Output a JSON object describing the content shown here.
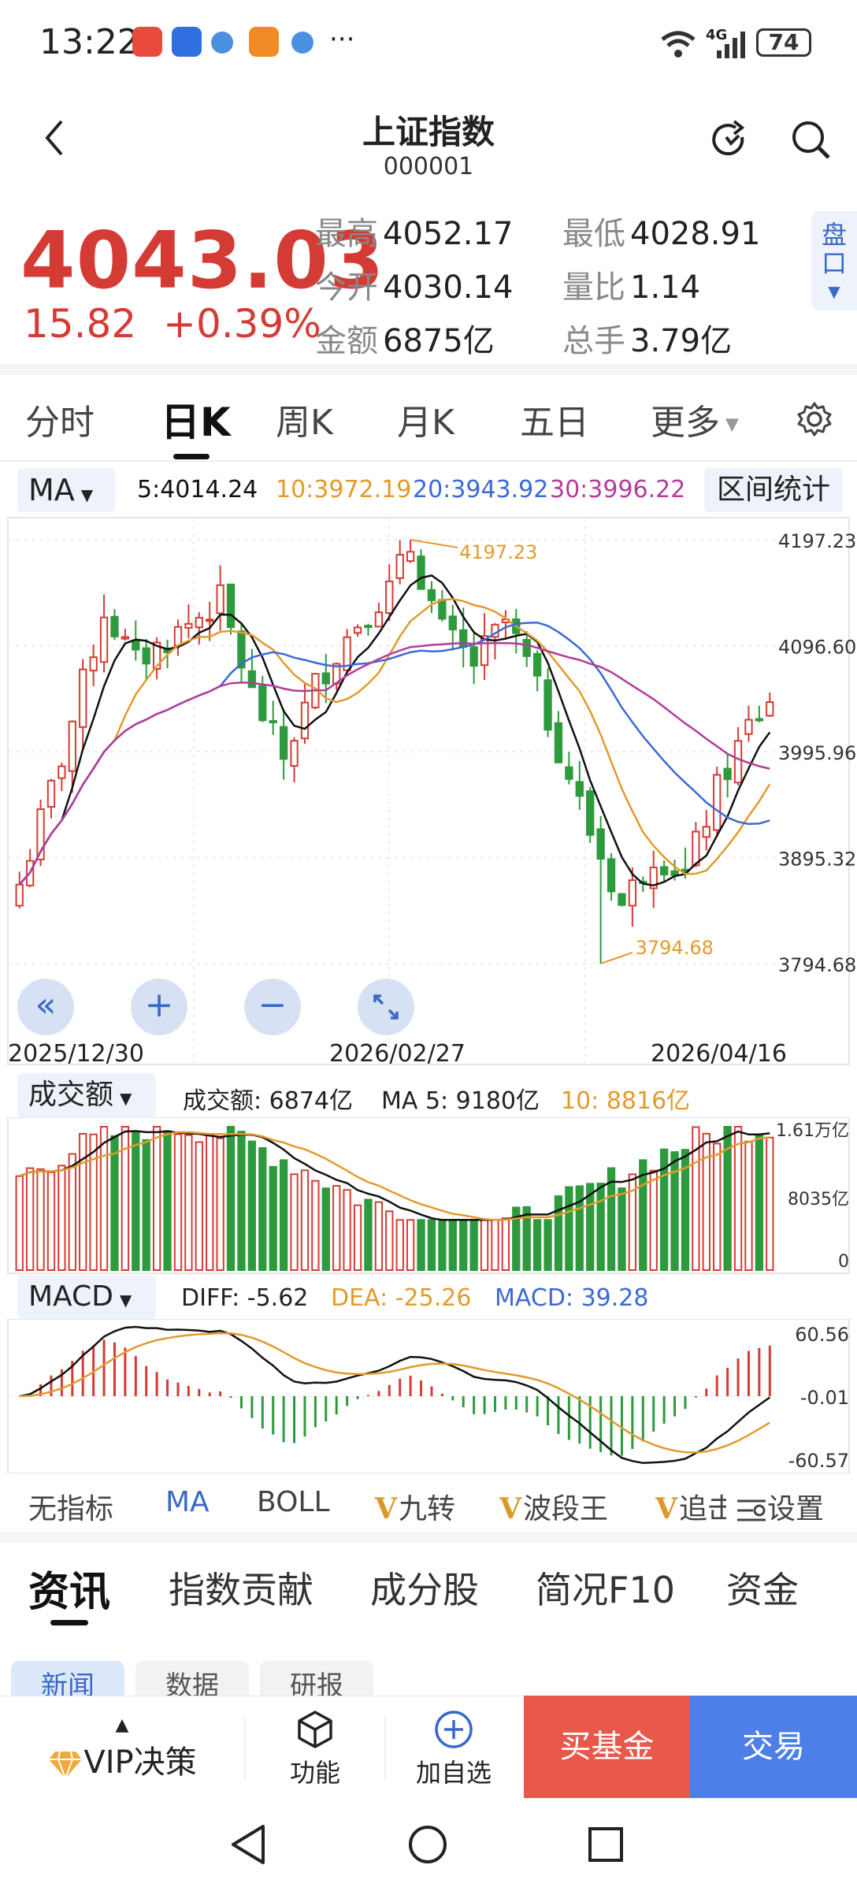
{
  "status_bar": {
    "time": "13:22",
    "network": "4G",
    "battery": "74"
  },
  "header": {
    "title": "上证指数",
    "code": "000001"
  },
  "quote": {
    "price": "4043.03",
    "change": "15.82",
    "change_pct": "+0.39%",
    "stats": [
      {
        "label": "最高",
        "value": "4052.17"
      },
      {
        "label": "最低",
        "value": "4028.91"
      },
      {
        "label": "今开",
        "value": "4030.14"
      },
      {
        "label": "量比",
        "value": "1.14"
      },
      {
        "label": "金额",
        "value": "6875亿"
      },
      {
        "label": "总手",
        "value": "3.79亿"
      }
    ],
    "pankou_label": "盘口",
    "up_color": "#d53b35",
    "down_color": "#2e9a3e"
  },
  "period_tabs": [
    "分时",
    "日K",
    "周K",
    "月K",
    "五日",
    "更多"
  ],
  "active_period": "日K",
  "ma_bar": {
    "selector": "MA",
    "ma5": "5:4014.24",
    "ma10": "10:3972.19",
    "ma20": "20:3943.92",
    "ma30": "30:3996.22",
    "interval_stats": "区间统计",
    "colors": {
      "ma5": "#111111",
      "ma10": "#e39a2c",
      "ma20": "#3b6ad6",
      "ma30": "#b43c9a"
    }
  },
  "kline": {
    "y_ticks": [
      "4197.23",
      "4096.60",
      "3995.96",
      "3895.32",
      "3794.68"
    ],
    "high_marker": "4197.23",
    "low_marker": "3794.68",
    "dates": [
      "2025/12/30",
      "2026/02/27",
      "2026/04/16"
    ]
  },
  "volume": {
    "selector": "成交额",
    "label": "成交额: 6874亿",
    "ma5": "MA 5: 9180亿",
    "ma10": "10: 8816亿",
    "y_ticks": [
      "1.61万亿",
      "8035亿",
      "0"
    ]
  },
  "macd": {
    "selector": "MACD",
    "diff": "DIFF: -5.62",
    "dea": "DEA: -25.26",
    "macd": "MACD: 39.28",
    "y_ticks": [
      "60.56",
      "-0.01",
      "-60.57"
    ]
  },
  "indicator_tabs": [
    "无指标",
    "MA",
    "BOLL",
    "九转",
    "波段王",
    "追击"
  ],
  "active_indicator": "MA",
  "settings_label": "设置",
  "news_tabs": [
    "资讯",
    "指数贡献",
    "成分股",
    "简况F10",
    "资金"
  ],
  "active_news_tab": "资讯",
  "news_chips": [
    "新闻",
    "数据",
    "研报"
  ],
  "bottom_bar": {
    "vip": "VIP决策",
    "function": "功能",
    "add_watch": "加自选",
    "buy_fund": "买基金",
    "trade": "交易"
  }
}
